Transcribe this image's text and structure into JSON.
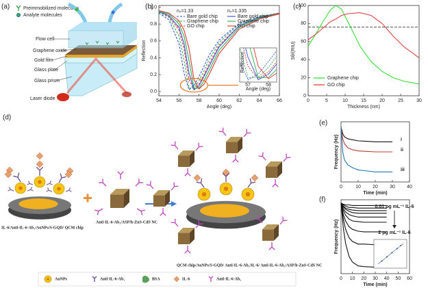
{
  "chart_data": [
    {
      "type": "line",
      "label": "(b)",
      "xlabel": "Angle (deg)",
      "ylabel": "Reflection",
      "xlim": [
        54,
        66
      ],
      "xticks": [
        54,
        56,
        58,
        60,
        62,
        64,
        66
      ],
      "ylim": [
        -0.05,
        1.02
      ],
      "yticks": [
        {
          "value": 0,
          "label": "0.0"
        },
        {
          "value": 0.2,
          "label": "0.2"
        },
        {
          "value": 0.4,
          "label": "0.4"
        },
        {
          "value": 0.6,
          "label": "0.6"
        },
        {
          "value": 0.8,
          "label": "0.8"
        },
        {
          "value": 1,
          "label": "1.0"
        }
      ],
      "legend_titles": [
        "nₛ=1.33",
        "nₛ=1.335"
      ],
      "x": [
        54,
        55,
        56,
        56.5,
        57,
        57.5,
        58,
        58.5,
        59,
        60,
        62,
        64,
        66
      ],
      "series": [
        {
          "name": "Bare gold chip",
          "color": "#3b4fd8",
          "dash": true,
          "values": [
            0.93,
            0.85,
            0.57,
            0.22,
            0.02,
            0.07,
            0.18,
            0.3,
            0.43,
            0.61,
            0.81,
            0.89,
            0.93
          ]
        },
        {
          "name": "Graphene chip",
          "color": "#22b14c",
          "dash": true,
          "values": [
            0.94,
            0.88,
            0.66,
            0.37,
            0.04,
            0.04,
            0.13,
            0.25,
            0.38,
            0.58,
            0.8,
            0.89,
            0.93
          ]
        },
        {
          "name": "GO chip",
          "color": "#e03030",
          "dash": true,
          "values": [
            0.95,
            0.89,
            0.73,
            0.51,
            0.14,
            0.03,
            0.09,
            0.2,
            0.33,
            0.55,
            0.78,
            0.88,
            0.93
          ]
        },
        {
          "name": "Bare gold chip",
          "color": "#3b4fd8",
          "dash": false,
          "values": [
            0.95,
            0.9,
            0.76,
            0.57,
            0.22,
            0.02,
            0.07,
            0.18,
            0.3,
            0.53,
            0.78,
            0.88,
            0.92
          ]
        },
        {
          "name": "Graphene chip",
          "color": "#22b14c",
          "dash": false,
          "values": [
            0.95,
            0.92,
            0.8,
            0.66,
            0.37,
            0.04,
            0.04,
            0.13,
            0.25,
            0.49,
            0.76,
            0.87,
            0.92
          ]
        },
        {
          "name": "GO chip",
          "color": "#e03030",
          "dash": false,
          "values": [
            0.96,
            0.93,
            0.84,
            0.73,
            0.51,
            0.14,
            0.03,
            0.09,
            0.2,
            0.45,
            0.74,
            0.86,
            0.92
          ]
        }
      ],
      "inset": {
        "xlim": [
          56.6,
          58.4
        ],
        "ylim": [
          0,
          0.3
        ],
        "xticks": [
          57,
          58
        ],
        "xlabel": "Angle (deg)",
        "ylabel": "Reflection"
      }
    },
    {
      "type": "line",
      "label": "(c)",
      "xlabel": "Thickness (nm)",
      "ylabel": "Sθ/(RIU)",
      "xlim": [
        0,
        30
      ],
      "xticks": [
        0,
        5,
        10,
        15,
        20,
        25,
        30
      ],
      "ylim": [
        0,
        100
      ],
      "yticks": [
        0,
        20,
        40,
        60,
        80,
        100
      ],
      "reference_line": 76,
      "legend": "lower left",
      "x": [
        0,
        2,
        4,
        6,
        7.5,
        9,
        11,
        14,
        17,
        20,
        23,
        26,
        30
      ],
      "series": [
        {
          "name": "Graphene chip",
          "color": "#33dd33",
          "values": [
            55,
            68,
            82,
            95,
            100,
            96,
            80,
            55,
            38,
            27,
            20,
            16,
            13
          ]
        },
        {
          "name": "GO chip",
          "color": "#e04040",
          "values": [
            62,
            68,
            75,
            82,
            85,
            89,
            91,
            92,
            89,
            80,
            66,
            54,
            42
          ]
        }
      ]
    },
    {
      "type": "line",
      "label": "(e)",
      "xlabel": "Time (min)",
      "ylabel": "Frequency (Hz)",
      "xlim": [
        0,
        40
      ],
      "xticks": [
        0,
        10,
        20,
        30,
        40
      ],
      "ylim": [
        -55,
        5
      ],
      "x": [
        0,
        1,
        2,
        4,
        7,
        10,
        15,
        20,
        25,
        30
      ],
      "series": [
        {
          "label": "i",
          "color": "#111111",
          "values": [
            0,
            -7,
            -10,
            -12,
            -13,
            -14,
            -14.5,
            -15,
            -15,
            -15
          ]
        },
        {
          "label": "ii",
          "color": "#c0392b",
          "values": [
            0,
            -12,
            -17,
            -21,
            -23,
            -24,
            -24.5,
            -25,
            -25,
            -25
          ]
        },
        {
          "label": "iii",
          "color": "#1f77b4",
          "values": [
            0,
            -25,
            -33,
            -38,
            -41,
            -43,
            -44,
            -45,
            -45,
            -45
          ]
        }
      ]
    },
    {
      "type": "line",
      "label": "(f)",
      "xlabel": "Time (min)",
      "ylabel": "Frequency (Hz)",
      "xlim": [
        0,
        60
      ],
      "xticks": [
        0,
        10,
        20,
        30,
        40,
        50,
        60
      ],
      "ylim": [
        -110,
        5
      ],
      "annotations": [
        "0.01 pg mL⁻¹ IL-6",
        "2 pg mL⁻¹ IL-6"
      ],
      "x": [
        0,
        2,
        4,
        7,
        10,
        15,
        20,
        30,
        40
      ],
      "series": [
        {
          "color": "#111111",
          "values": [
            0,
            -2,
            -3,
            -3,
            -4,
            -4,
            -4,
            -4,
            -4
          ]
        },
        {
          "color": "#111111",
          "values": [
            0,
            -3,
            -5,
            -7,
            -7,
            -8,
            -8,
            -8,
            -8
          ]
        },
        {
          "color": "#111111",
          "values": [
            0,
            -5,
            -8,
            -10,
            -11,
            -12,
            -12,
            -12,
            -12
          ]
        },
        {
          "color": "#111111",
          "values": [
            0,
            -6,
            -10,
            -13,
            -15,
            -16,
            -16,
            -16,
            -16
          ]
        },
        {
          "color": "#111111",
          "values": [
            0,
            -9,
            -14,
            -18,
            -20,
            -22,
            -22,
            -22,
            -22
          ]
        },
        {
          "color": "#111111",
          "values": [
            0,
            -12,
            -19,
            -25,
            -28,
            -29,
            -30,
            -30,
            -30
          ]
        },
        {
          "color": "#111111",
          "values": [
            0,
            -18,
            -28,
            -37,
            -41,
            -44,
            -45,
            -45,
            -45
          ]
        },
        {
          "color": "#111111",
          "values": [
            0,
            -25,
            -41,
            -54,
            -60,
            -64,
            -64,
            -65,
            -65
          ]
        },
        {
          "color": "#111111",
          "values": [
            0,
            -39,
            -63,
            -83,
            -92,
            -98,
            -99,
            -100,
            -100
          ]
        }
      ]
    }
  ],
  "diagram_a": {
    "label": "(a)",
    "legend": [
      "Preimmobilized molecules",
      "Analyte molecules"
    ],
    "parts": [
      "Flow cell",
      "Graphene oxide",
      "Gold film",
      "Glass plate",
      "Glass prism",
      "Laser diode"
    ]
  },
  "diagram_d": {
    "label": "(d)",
    "left_label": "IL-6/Anti-IL-6-Ab₁/AuNPs/S-GQD/ QCM chip",
    "middle_label": "Anti-IL-6-Ab₂/ASP/h-ZnS-CdS NC",
    "right_label": "QCM chip/AuNPs/S-GQD/ Anti-IL-6-Ab₁/IL-6/ Anti-IL-6-Ab₂/ASP/h-ZnS-CdS NC",
    "legend": [
      "AuNPs",
      "Anti-IL-6-Ab₁",
      "BSA",
      "IL-6",
      "Anti-IL-6-Ab₂"
    ]
  }
}
